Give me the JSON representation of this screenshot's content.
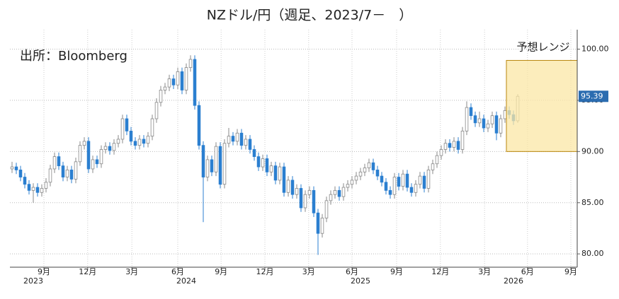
{
  "chart_data": {
    "type": "candlestick",
    "title": "NZドル/円（週足、2023/7－　）",
    "source": "出所：Bloomberg",
    "forecast_range": {
      "label": "予想レンジ",
      "low": 90,
      "high": 98.9,
      "color": "#fbe7a6"
    },
    "up_color": "#ffffff",
    "down_color": "#2b7fd0",
    "grid": true,
    "ylim": [
      78.7,
      101.9
    ],
    "yticks": [
      {
        "value": 80,
        "label": "80.00"
      },
      {
        "value": 85,
        "label": "85.00"
      },
      {
        "value": 90,
        "label": "90.00"
      },
      {
        "value": 95,
        "label": "95.00"
      },
      {
        "value": 100,
        "label": "100.00"
      }
    ],
    "xlim": [
      -0.5,
      133
    ],
    "xticks": [
      {
        "value": 7.5,
        "label": "9月"
      },
      {
        "value": 17.8,
        "label": "12月"
      },
      {
        "value": 28.2,
        "label": "3月"
      },
      {
        "value": 39,
        "label": "6月"
      },
      {
        "value": 49.2,
        "label": "9月"
      },
      {
        "value": 59.5,
        "label": "12月"
      },
      {
        "value": 69.8,
        "label": "3月"
      },
      {
        "value": 80,
        "label": "6月"
      },
      {
        "value": 90.5,
        "label": "9月"
      },
      {
        "value": 100.8,
        "label": "12月"
      },
      {
        "value": 111.2,
        "label": "3月"
      },
      {
        "value": 121.3,
        "label": "6月"
      },
      {
        "value": 131.5,
        "label": "9月"
      }
    ],
    "years": [
      {
        "value": 5,
        "label": "2023"
      },
      {
        "value": 41,
        "label": "2024"
      },
      {
        "value": 82,
        "label": "2025"
      },
      {
        "value": 118,
        "label": "2026"
      }
    ],
    "open": [
      88.3,
      88.5,
      88.2,
      87.5,
      86.8,
      86.2,
      86.5,
      86.0,
      86.4,
      87.0,
      88.3,
      89.5,
      88.6,
      87.5,
      88.2,
      87.3,
      89.0,
      90.6,
      91.0,
      88.3,
      89.2,
      88.8,
      90.2,
      90.5,
      90.1,
      90.8,
      91.2,
      93.2,
      92.0,
      91.0,
      90.6,
      91.2,
      90.8,
      91.5,
      93.2,
      94.8,
      96.0,
      96.3,
      97.1,
      96.5,
      97.8,
      96.0,
      98.2,
      99.0,
      94.5,
      90.6,
      87.5,
      89.2,
      88.0,
      90.5,
      86.8,
      90.8,
      91.5,
      91.0,
      91.8,
      90.6,
      91.2,
      90.2,
      89.5,
      88.5,
      89.3,
      88.0,
      88.6,
      87.2,
      88.5,
      86.0,
      87.2,
      85.8,
      86.4,
      84.5,
      85.8,
      86.2,
      84.0,
      82.0,
      83.5,
      85.2,
      85.8,
      86.2,
      85.6,
      86.5,
      86.8,
      87.2,
      87.6,
      88.0,
      88.4,
      88.9,
      88.2,
      87.6,
      87.0,
      86.2,
      85.8,
      87.5,
      86.6,
      87.8,
      86.5,
      86.0,
      86.8,
      87.6,
      86.4,
      88.2,
      88.8,
      89.6,
      90.2,
      90.8,
      90.4,
      91.0,
      90.2,
      92.0,
      94.3,
      93.5,
      92.8,
      93.2,
      92.3,
      92.7,
      93.5,
      91.8,
      93.2,
      94.0,
      93.6,
      93.0
    ],
    "high": [
      89.0,
      88.9,
      88.6,
      87.9,
      87.2,
      86.9,
      86.9,
      86.8,
      87.4,
      88.7,
      89.9,
      89.9,
      89.0,
      88.6,
      88.6,
      89.4,
      91.0,
      91.4,
      91.4,
      89.6,
      89.6,
      90.6,
      90.9,
      90.9,
      91.2,
      91.6,
      93.6,
      93.6,
      92.4,
      91.4,
      91.6,
      91.6,
      91.9,
      93.6,
      95.2,
      96.4,
      96.7,
      97.5,
      97.5,
      98.2,
      98.2,
      98.6,
      99.4,
      99.4,
      94.9,
      91.0,
      89.6,
      89.6,
      90.9,
      90.9,
      91.2,
      92.3,
      91.9,
      92.2,
      92.2,
      91.6,
      91.6,
      90.6,
      89.9,
      89.7,
      89.7,
      89.0,
      89.0,
      88.9,
      88.9,
      87.6,
      87.6,
      86.8,
      86.8,
      86.2,
      86.6,
      86.6,
      84.4,
      83.9,
      85.6,
      86.2,
      86.6,
      86.6,
      86.9,
      87.2,
      87.6,
      88.0,
      88.4,
      88.8,
      89.3,
      89.3,
      88.6,
      88.0,
      87.4,
      86.6,
      87.9,
      87.9,
      88.2,
      88.2,
      86.9,
      87.2,
      88.0,
      88.0,
      88.6,
      89.2,
      90.0,
      90.6,
      91.2,
      91.2,
      91.4,
      91.4,
      92.4,
      94.9,
      94.7,
      93.9,
      93.9,
      93.6,
      93.1,
      93.9,
      93.9,
      93.6,
      94.4,
      94.4,
      94.0,
      95.6
    ],
    "low": [
      87.9,
      87.8,
      87.1,
      86.4,
      85.8,
      85.0,
      85.6,
      85.6,
      86.0,
      86.6,
      87.9,
      88.2,
      87.1,
      87.1,
      86.9,
      86.9,
      88.6,
      90.2,
      87.9,
      87.9,
      88.4,
      88.4,
      89.8,
      89.7,
      89.7,
      90.4,
      90.8,
      91.6,
      90.6,
      90.2,
      90.2,
      90.4,
      90.4,
      91.1,
      92.8,
      94.4,
      95.6,
      95.9,
      96.1,
      96.1,
      95.6,
      95.6,
      97.8,
      94.1,
      90.2,
      83.1,
      87.1,
      87.6,
      87.6,
      86.4,
      86.4,
      90.4,
      90.6,
      90.6,
      90.2,
      90.2,
      89.8,
      89.1,
      88.1,
      88.1,
      87.6,
      87.6,
      86.8,
      86.8,
      85.6,
      85.6,
      85.4,
      85.4,
      84.1,
      84.1,
      85.4,
      83.6,
      79.9,
      81.6,
      83.1,
      84.8,
      85.4,
      85.2,
      85.2,
      86.1,
      86.4,
      86.8,
      87.2,
      87.6,
      88.0,
      87.8,
      87.2,
      86.6,
      85.8,
      85.4,
      85.4,
      86.2,
      86.2,
      86.1,
      85.6,
      85.6,
      86.4,
      86.0,
      86.0,
      87.8,
      88.4,
      89.2,
      89.8,
      90.0,
      90.0,
      89.8,
      89.8,
      91.6,
      93.1,
      92.4,
      92.4,
      91.9,
      91.9,
      92.3,
      91.1,
      91.4,
      92.8,
      93.2,
      92.6,
      92.8
    ],
    "close": [
      88.5,
      88.2,
      87.5,
      86.8,
      86.2,
      86.5,
      86.0,
      86.4,
      87.0,
      88.3,
      89.5,
      88.6,
      87.5,
      88.2,
      87.3,
      89.0,
      90.6,
      91.0,
      88.3,
      89.2,
      88.8,
      90.2,
      90.5,
      90.1,
      90.8,
      91.2,
      93.2,
      92.0,
      91.0,
      90.6,
      91.2,
      90.8,
      91.5,
      93.2,
      94.8,
      96.0,
      96.3,
      97.1,
      96.5,
      97.8,
      96.0,
      98.2,
      99.0,
      94.5,
      90.6,
      87.5,
      89.2,
      88.0,
      90.5,
      86.8,
      90.8,
      91.5,
      91.0,
      91.8,
      90.6,
      91.2,
      90.2,
      89.5,
      88.5,
      89.3,
      88.0,
      88.6,
      87.2,
      88.5,
      86.0,
      87.2,
      85.8,
      86.4,
      84.5,
      85.8,
      86.2,
      84.0,
      82.0,
      83.5,
      85.2,
      85.8,
      86.2,
      85.6,
      86.5,
      86.8,
      87.2,
      87.6,
      88.0,
      88.4,
      88.9,
      88.2,
      87.6,
      87.0,
      86.2,
      85.8,
      87.5,
      86.6,
      87.8,
      86.5,
      86.0,
      86.8,
      87.6,
      86.4,
      88.2,
      88.8,
      89.6,
      90.2,
      90.8,
      90.4,
      91.0,
      90.2,
      92.0,
      94.3,
      93.5,
      92.8,
      93.2,
      92.3,
      92.7,
      93.5,
      91.8,
      93.2,
      94.0,
      93.6,
      93.0,
      95.39
    ]
  }
}
